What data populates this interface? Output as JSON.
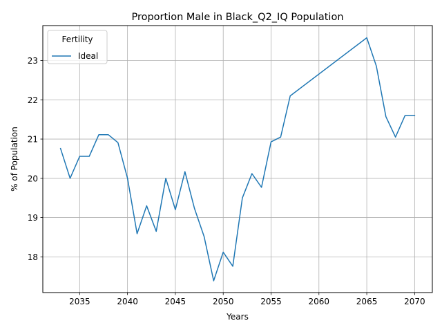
{
  "chart_data": {
    "type": "line",
    "title": "Proportion Male in Black_Q2_IQ Population",
    "xlabel": "Years",
    "ylabel": "% of Population",
    "xlim": [
      2031.15,
      2071.85
    ],
    "ylim": [
      17.09,
      23.89
    ],
    "x_ticks": [
      2035,
      2040,
      2045,
      2050,
      2055,
      2060,
      2065,
      2070
    ],
    "y_ticks": [
      18,
      19,
      20,
      21,
      22,
      23
    ],
    "grid": true,
    "legend": {
      "title": "Fertility",
      "placement": "upper-left"
    },
    "series": [
      {
        "name": "Ideal",
        "color": "#1f77b4",
        "x": [
          2033,
          2034,
          2035,
          2036,
          2037,
          2038,
          2039,
          2040,
          2041,
          2042,
          2043,
          2044,
          2045,
          2046,
          2047,
          2048,
          2049,
          2050,
          2051,
          2052,
          2053,
          2054,
          2055,
          2056,
          2057,
          2065,
          2066,
          2067,
          2068,
          2069,
          2070
        ],
        "y": [
          20.76,
          20.0,
          20.56,
          20.56,
          21.11,
          21.11,
          20.91,
          20.0,
          18.59,
          19.3,
          18.65,
          20.0,
          19.2,
          20.17,
          19.23,
          18.52,
          17.39,
          18.12,
          17.76,
          19.5,
          20.12,
          19.77,
          20.93,
          21.05,
          22.1,
          23.58,
          22.86,
          21.57,
          21.05,
          21.6,
          21.6
        ]
      }
    ]
  }
}
